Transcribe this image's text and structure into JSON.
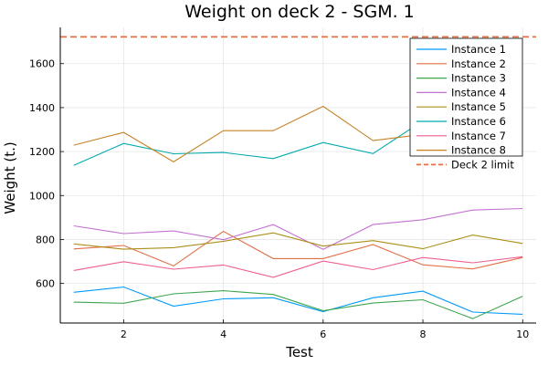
{
  "chart_data": {
    "type": "line",
    "title": "Weight on deck 2 - SGM. 1",
    "xlabel": "Test",
    "ylabel": "Weight (t.)",
    "x": [
      1,
      2,
      3,
      4,
      5,
      6,
      7,
      8,
      9,
      10
    ],
    "xlim": [
      0.73,
      10.27
    ],
    "ylim": [
      420,
      1765
    ],
    "xticks": [
      2,
      4,
      6,
      8,
      10
    ],
    "yticks": [
      600,
      800,
      1000,
      1200,
      1400,
      1600
    ],
    "grid": true,
    "legend_position": "top-right",
    "series": [
      {
        "name": "Instance 1",
        "color": "#009AFA",
        "values": [
          560,
          584,
          497,
          530,
          535,
          472,
          535,
          565,
          470,
          460
        ]
      },
      {
        "name": "Instance 2",
        "color": "#E36F47",
        "values": [
          757,
          773,
          680,
          837,
          713,
          713,
          777,
          685,
          666,
          718
        ]
      },
      {
        "name": "Instance 3",
        "color": "#3EA44E",
        "values": [
          515,
          510,
          553,
          567,
          550,
          476,
          511,
          526,
          440,
          542
        ]
      },
      {
        "name": "Instance 4",
        "color": "#C371D2",
        "values": [
          862,
          827,
          839,
          799,
          868,
          755,
          868,
          890,
          934,
          941
        ]
      },
      {
        "name": "Instance 5",
        "color": "#AC8E18",
        "values": [
          780,
          756,
          763,
          792,
          830,
          770,
          795,
          758,
          820,
          782
        ]
      },
      {
        "name": "Instance 6",
        "color": "#00A9AD",
        "values": [
          1137,
          1237,
          1190,
          1196,
          1168,
          1241,
          1191,
          1340,
          1345,
          1355
        ]
      },
      {
        "name": "Instance 7",
        "color": "#ED5E93",
        "values": [
          659,
          699,
          665,
          684,
          628,
          702,
          663,
          718,
          694,
          722
        ]
      },
      {
        "name": "Instance 8",
        "color": "#C68225",
        "values": [
          1229,
          1287,
          1153,
          1295,
          1295,
          1406,
          1250,
          1278,
          1286,
          1293
        ]
      }
    ],
    "limit": {
      "name": "Deck 2 limit",
      "color": "#E26F46",
      "value": 1722
    }
  }
}
